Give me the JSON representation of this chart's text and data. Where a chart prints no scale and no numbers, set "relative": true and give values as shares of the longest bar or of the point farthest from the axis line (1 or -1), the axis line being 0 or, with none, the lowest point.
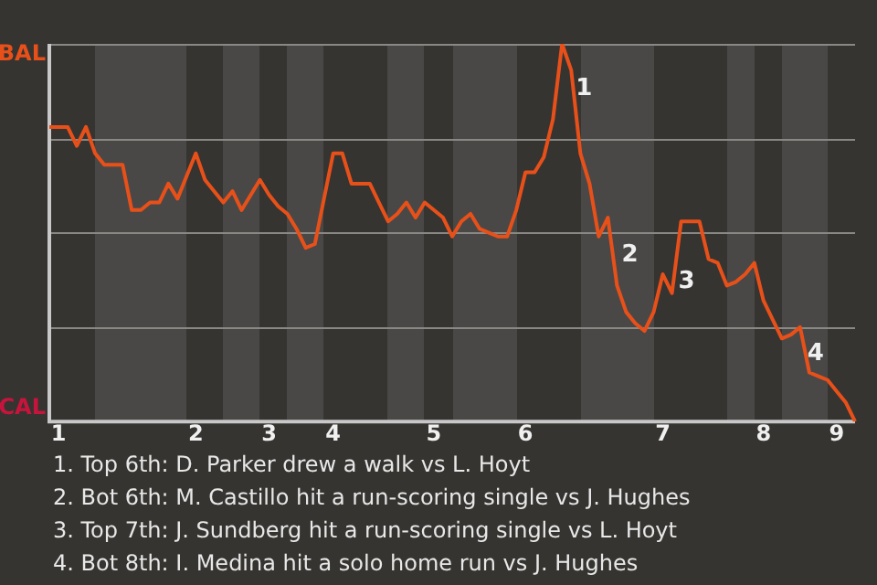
{
  "chart_data": {
    "type": "line",
    "relative": true,
    "categories": [
      null,
      "1",
      null,
      null,
      null,
      null,
      null,
      null,
      null,
      null,
      null,
      null,
      null,
      null,
      null,
      null,
      "2",
      null,
      null,
      null,
      null,
      null,
      null,
      null,
      "3",
      null,
      null,
      null,
      null,
      null,
      null,
      "4",
      null,
      null,
      null,
      null,
      null,
      null,
      null,
      null,
      null,
      null,
      "5",
      null,
      null,
      null,
      null,
      null,
      null,
      null,
      null,
      null,
      "6",
      null,
      null,
      null,
      null,
      null,
      null,
      null,
      null,
      null,
      null,
      null,
      null,
      null,
      null,
      "7",
      null,
      null,
      null,
      null,
      null,
      null,
      null,
      null,
      null,
      null,
      "8",
      null,
      null,
      null,
      null,
      null,
      null,
      null,
      "9",
      null,
      null
    ],
    "series": [
      {
        "color": "#e8501a",
        "values": [
          0.78,
          0.78,
          0.78,
          0.73,
          0.78,
          0.71,
          0.68,
          0.68,
          0.68,
          0.56,
          0.56,
          0.58,
          0.58,
          0.63,
          0.59,
          0.65,
          0.71,
          0.64,
          0.61,
          0.58,
          0.61,
          0.56,
          0.6,
          0.64,
          0.6,
          0.57,
          0.55,
          0.51,
          0.46,
          0.47,
          0.59,
          0.71,
          0.71,
          0.63,
          0.63,
          0.63,
          0.58,
          0.53,
          0.55,
          0.58,
          0.54,
          0.58,
          0.56,
          0.54,
          0.49,
          0.53,
          0.55,
          0.51,
          0.5,
          0.49,
          0.49,
          0.56,
          0.66,
          0.66,
          0.7,
          0.8,
          1,
          0.93,
          0.71,
          0.63,
          0.49,
          0.54,
          0.36,
          0.29,
          0.26,
          0.24,
          0.29,
          0.39,
          0.34,
          0.53,
          0.53,
          0.53,
          0.43,
          0.42,
          0.36,
          0.37,
          0.39,
          0.42,
          0.32,
          0.27,
          0.22,
          0.23,
          0.25,
          0.13,
          0.12,
          0.11,
          0.08,
          0.05,
          0
        ]
      }
    ],
    "grid": "y",
    "legend": false,
    "marker": "none",
    "line_style": "solid",
    "annotations": [
      "BAL",
      "CAL",
      "1",
      "2",
      "3",
      "4",
      "1. Top 6th: D. Parker drew a walk vs L. Hoyt",
      "2. Bot 6th: M. Castillo hit a run-scoring single vs J. Hughes",
      "3. Top 7th: J. Sundberg hit a run-scoring single vs L. Hoyt",
      "4. Bot 8th: I. Medina hit a solo home run vs J. Hughes"
    ]
  }
}
